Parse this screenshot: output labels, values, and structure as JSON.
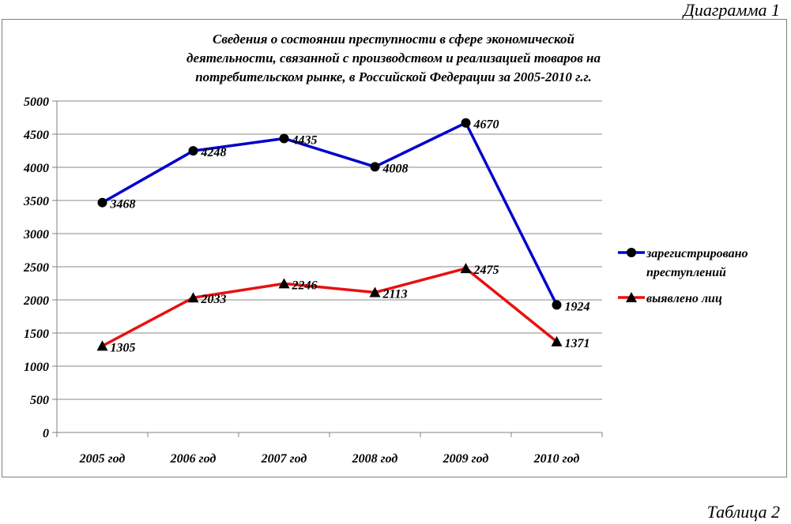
{
  "captions": {
    "top": "Диаграмма 1",
    "bottom": "Таблица 2"
  },
  "chart_data": {
    "type": "line",
    "title_lines": [
      "Сведения о состоянии преступности в сфере экономической",
      "деятельности, связанной с производством и реализацией товаров на",
      "потребительском рынке, в Российской Федерации за 2005-2010 г.г."
    ],
    "categories": [
      "2005 год",
      "2006 год",
      "2007 год",
      "2008 год",
      "2009 год",
      "2010 год"
    ],
    "ylim": [
      0,
      5000
    ],
    "yticks": [
      "0",
      "500",
      "1000",
      "1500",
      "2000",
      "2500",
      "3000",
      "3500",
      "4000",
      "4500",
      "5000"
    ],
    "grid": "horizontal",
    "legend_position": "right",
    "series": [
      {
        "name_lines": [
          "зарегистрировано",
          "преступлений"
        ],
        "values": [
          3468,
          4248,
          4435,
          4008,
          4670,
          1924
        ],
        "labels": [
          "3468",
          "4248",
          "4435",
          "4008",
          "4670",
          "1924"
        ],
        "color": "#0000cc",
        "marker": "circle"
      },
      {
        "name_lines": [
          "выявлено лиц"
        ],
        "values": [
          1305,
          2033,
          2246,
          2113,
          2475,
          1371
        ],
        "labels": [
          "1305",
          "2033",
          "2246",
          "2113",
          "2475",
          "1371"
        ],
        "color": "#e81010",
        "marker": "triangle"
      }
    ]
  }
}
